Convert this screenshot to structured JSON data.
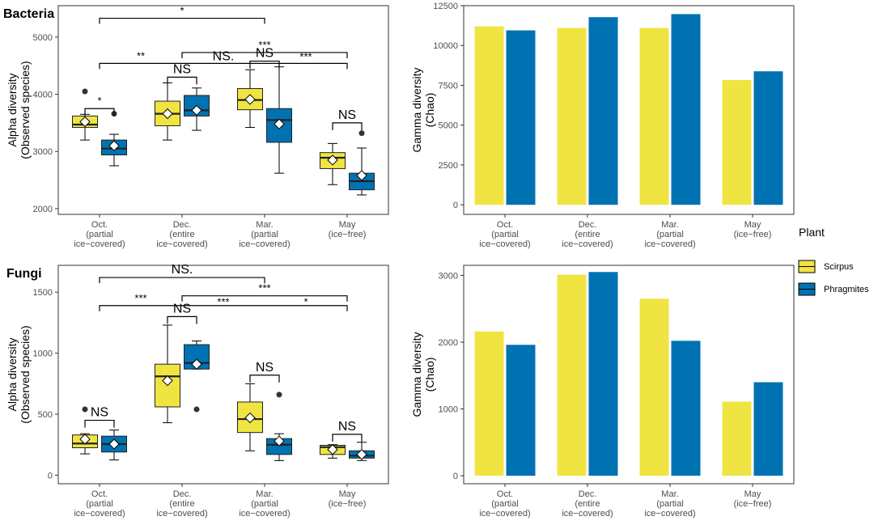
{
  "colors": {
    "scirpus": "#f0e442",
    "phragmites": "#0072b2"
  },
  "legend": {
    "title": "Plant",
    "items": [
      "Scirpus",
      "Phragmites"
    ]
  },
  "categories": [
    [
      "Oct.",
      "(partial",
      "ice−covered)"
    ],
    [
      "Dec.",
      "(entire",
      "ice−covered)"
    ],
    [
      "Mar.",
      "(partial",
      "ice−covered)"
    ],
    [
      "May",
      "(ice−free)"
    ]
  ],
  "chart_data": [
    {
      "type": "box",
      "title": "Bacteria",
      "ylabel": [
        "Alpha diversity",
        "(Observed species)"
      ],
      "ylim": [
        1900,
        5550
      ],
      "yticks": [
        2000,
        3000,
        4000,
        5000
      ],
      "series": [
        {
          "name": "Scirpus",
          "boxes": [
            {
              "min": 3200,
              "q1": 3420,
              "median": 3470,
              "q3": 3620,
              "max": 3650,
              "mean": 3520,
              "outliers": [
                4050
              ]
            },
            {
              "min": 3200,
              "q1": 3450,
              "median": 3660,
              "q3": 3880,
              "max": 4200,
              "mean": 3660,
              "outliers": []
            },
            {
              "min": 3420,
              "q1": 3730,
              "median": 3900,
              "q3": 4100,
              "max": 4430,
              "mean": 3910,
              "outliers": []
            },
            {
              "min": 2420,
              "q1": 2700,
              "median": 2890,
              "q3": 2980,
              "max": 3140,
              "mean": 2850,
              "outliers": []
            }
          ]
        },
        {
          "name": "Phragmites",
          "boxes": [
            {
              "min": 2750,
              "q1": 2940,
              "median": 3050,
              "q3": 3200,
              "max": 3300,
              "mean": 3100,
              "outliers": [
                3660
              ]
            },
            {
              "min": 3370,
              "q1": 3620,
              "median": 3720,
              "q3": 3980,
              "max": 4110,
              "mean": 3720,
              "outliers": []
            },
            {
              "min": 2620,
              "q1": 3160,
              "median": 3550,
              "q3": 3750,
              "max": 4480,
              "mean": 3480,
              "outliers": []
            },
            {
              "min": 2240,
              "q1": 2330,
              "median": 2480,
              "q3": 2620,
              "max": 3060,
              "mean": 2580,
              "outliers": [
                3320
              ]
            }
          ]
        }
      ],
      "brackets": [
        {
          "type": "within",
          "group": 0,
          "y": 3750,
          "label": "*",
          "big": false
        },
        {
          "type": "within",
          "group": 1,
          "y": 4300,
          "label": "NS",
          "big": true
        },
        {
          "type": "within",
          "group": 2,
          "y": 4580,
          "label": "NS",
          "big": true
        },
        {
          "type": "within",
          "group": 3,
          "y": 3500,
          "label": "NS",
          "big": true
        },
        {
          "type": "across",
          "from": 0,
          "to": 2,
          "y": 5330,
          "label": "*",
          "big": false
        },
        {
          "type": "across",
          "from": 1,
          "to": 3,
          "y": 4730,
          "label": "***",
          "big": false,
          "label_at": 2
        },
        {
          "type": "across",
          "from": 0,
          "to": 3,
          "y": 4540,
          "label": "**",
          "big": false,
          "label_at": 0.5
        }
      ],
      "extra_labels": [
        {
          "text": "***",
          "at_group": 2.5,
          "y": 4650,
          "big": false
        },
        {
          "text": "NS.",
          "at_group": 1.5,
          "y": 4650,
          "big": true
        }
      ]
    },
    {
      "type": "bar",
      "title": "",
      "ylabel": [
        "Gamma diversity",
        "(Chao)"
      ],
      "ylim": [
        -600,
        12500
      ],
      "yticks": [
        0,
        2500,
        5000,
        7500,
        10000,
        12500
      ],
      "series": [
        {
          "name": "Scirpus",
          "values": [
            11200,
            11100,
            11100,
            7830
          ]
        },
        {
          "name": "Phragmites",
          "values": [
            10950,
            11780,
            11970,
            8380
          ]
        }
      ]
    },
    {
      "type": "box",
      "title": "Fungi",
      "ylabel": [
        "Alpha diversity",
        "(Observed species)"
      ],
      "ylim": [
        -70,
        1720
      ],
      "yticks": [
        0,
        500,
        1000,
        1500
      ],
      "series": [
        {
          "name": "Scirpus",
          "boxes": [
            {
              "min": 175,
              "q1": 225,
              "median": 260,
              "q3": 330,
              "max": 340,
              "mean": 295,
              "outliers": [
                540
              ]
            },
            {
              "min": 430,
              "q1": 560,
              "median": 810,
              "q3": 910,
              "max": 1230,
              "mean": 775,
              "outliers": []
            },
            {
              "min": 200,
              "q1": 350,
              "median": 460,
              "q3": 600,
              "max": 750,
              "mean": 470,
              "outliers": []
            },
            {
              "min": 140,
              "q1": 170,
              "median": 230,
              "q3": 245,
              "max": 250,
              "mean": 210,
              "outliers": []
            }
          ]
        },
        {
          "name": "Phragmites",
          "boxes": [
            {
              "min": 125,
              "q1": 190,
              "median": 255,
              "q3": 320,
              "max": 370,
              "mean": 255,
              "outliers": []
            },
            {
              "min": 870,
              "q1": 870,
              "median": 920,
              "q3": 1070,
              "max": 1100,
              "mean": 910,
              "outliers": [
                540
              ]
            },
            {
              "min": 120,
              "q1": 170,
              "median": 250,
              "q3": 300,
              "max": 340,
              "mean": 280,
              "outliers": [
                660
              ]
            },
            {
              "min": 120,
              "q1": 140,
              "median": 160,
              "q3": 200,
              "max": 270,
              "mean": 170,
              "outliers": []
            }
          ]
        }
      ],
      "brackets": [
        {
          "type": "within",
          "group": 0,
          "y": 450,
          "label": "NS",
          "big": true
        },
        {
          "type": "within",
          "group": 1,
          "y": 1300,
          "label": "NS",
          "big": true
        },
        {
          "type": "within",
          "group": 2,
          "y": 820,
          "label": "NS",
          "big": true
        },
        {
          "type": "within",
          "group": 3,
          "y": 335,
          "label": "NS",
          "big": true
        },
        {
          "type": "across",
          "from": 0,
          "to": 2,
          "y": 1620,
          "label": "NS.",
          "big": true
        },
        {
          "type": "across",
          "from": 1,
          "to": 3,
          "y": 1470,
          "label": "***",
          "big": false,
          "label_at": 2
        },
        {
          "type": "across",
          "from": 0,
          "to": 3,
          "y": 1390,
          "label": "***",
          "big": false,
          "label_at": 0.5
        }
      ],
      "extra_labels": [
        {
          "text": "***",
          "at_group": 1.5,
          "y": 1420,
          "big": false
        },
        {
          "text": "*",
          "at_group": 2.5,
          "y": 1420,
          "big": false
        }
      ]
    },
    {
      "type": "bar",
      "title": "",
      "ylabel": [
        "Gamma diversity",
        "(Chao)"
      ],
      "ylim": [
        -120,
        3150
      ],
      "yticks": [
        0,
        1000,
        2000,
        3000
      ],
      "series": [
        {
          "name": "Scirpus",
          "values": [
            2160,
            3010,
            2650,
            1110
          ]
        },
        {
          "name": "Phragmites",
          "values": [
            1960,
            3050,
            2020,
            1400
          ]
        }
      ]
    }
  ]
}
